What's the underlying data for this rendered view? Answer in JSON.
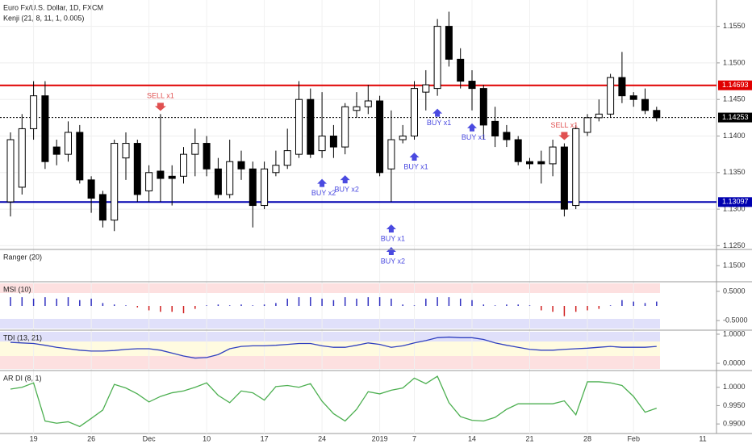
{
  "chart_data": [
    {
      "type": "candlestick",
      "title": "Euro Fx/U.S. Dollar, 1D, FXCM",
      "subtitle": "Kenji (21, 8, 11, 1, 0.005)",
      "categories": [
        null,
        null,
        "19",
        null,
        null,
        null,
        null,
        "26",
        null,
        null,
        null,
        null,
        "Dec",
        null,
        null,
        null,
        null,
        "10",
        null,
        null,
        null,
        null,
        "17",
        null,
        null,
        null,
        null,
        "24",
        null,
        null,
        null,
        null,
        "2019",
        null,
        null,
        "7",
        null,
        null,
        null,
        null,
        "14",
        null,
        null,
        null,
        null,
        "21",
        null,
        null,
        null,
        null,
        "28",
        null,
        null,
        null,
        "Feb",
        null,
        null
      ],
      "extra_x_labels": [
        "11"
      ],
      "open": [
        1.131,
        1.133,
        1.141,
        1.1455,
        1.1385,
        1.1375,
        1.1405,
        1.134,
        1.132,
        1.1285,
        1.137,
        1.139,
        1.1325,
        1.1352,
        1.1345,
        1.1345,
        1.1375,
        1.139,
        1.1355,
        1.132,
        1.1365,
        1.1355,
        1.1305,
        1.135,
        1.136,
        1.1375,
        1.145,
        1.138,
        1.14,
        1.1385,
        1.1435,
        1.144,
        1.1448,
        1.1355,
        1.1395,
        1.14,
        1.146,
        1.1465,
        1.155,
        1.1505,
        1.1475,
        1.1465,
        1.142,
        1.1405,
        1.1395,
        1.1365,
        1.1365,
        1.1362,
        1.1385,
        1.1305,
        1.1405,
        1.1425,
        1.143,
        1.148,
        1.1455,
        1.145,
        1.1435
      ],
      "high": [
        1.1405,
        1.143,
        1.1475,
        1.1475,
        1.1395,
        1.142,
        1.1415,
        1.1345,
        1.1325,
        1.1395,
        1.1405,
        1.1395,
        1.136,
        1.143,
        1.136,
        1.1385,
        1.141,
        1.14,
        1.137,
        1.1395,
        1.138,
        1.1365,
        1.1365,
        1.138,
        1.141,
        1.1475,
        1.1465,
        1.146,
        1.1415,
        1.1445,
        1.146,
        1.147,
        1.1455,
        1.1435,
        1.1415,
        1.1475,
        1.149,
        1.156,
        1.157,
        1.152,
        1.149,
        1.147,
        1.144,
        1.1415,
        1.14,
        1.137,
        1.138,
        1.1395,
        1.139,
        1.1415,
        1.143,
        1.145,
        1.1485,
        1.1515,
        1.146,
        1.1465,
        1.144
      ],
      "low": [
        1.129,
        1.132,
        1.1395,
        1.1355,
        1.136,
        1.1365,
        1.1335,
        1.1295,
        1.1275,
        1.127,
        1.134,
        1.131,
        1.131,
        1.131,
        1.1305,
        1.1335,
        1.1345,
        1.1345,
        1.1315,
        1.1315,
        1.134,
        1.1275,
        1.13,
        1.1345,
        1.1355,
        1.137,
        1.137,
        1.137,
        1.137,
        1.1375,
        1.1425,
        1.143,
        1.1345,
        1.131,
        1.139,
        1.1395,
        1.1435,
        1.1455,
        1.1495,
        1.1465,
        1.1435,
        1.1395,
        1.1385,
        1.1385,
        1.136,
        1.1355,
        1.1335,
        1.1345,
        1.129,
        1.13,
        1.14,
        1.142,
        1.1425,
        1.1445,
        1.144,
        1.143,
        1.142
      ],
      "close": [
        1.1395,
        1.141,
        1.1455,
        1.1365,
        1.1375,
        1.1405,
        1.134,
        1.1315,
        1.1285,
        1.139,
        1.139,
        1.132,
        1.135,
        1.1342,
        1.1342,
        1.1375,
        1.139,
        1.1355,
        1.132,
        1.1365,
        1.1355,
        1.1305,
        1.1355,
        1.136,
        1.138,
        1.145,
        1.1375,
        1.14,
        1.1385,
        1.144,
        1.144,
        1.1448,
        1.135,
        1.1395,
        1.14,
        1.1465,
        1.147,
        1.155,
        1.1505,
        1.1475,
        1.1465,
        1.1415,
        1.14,
        1.1395,
        1.1365,
        1.1362,
        1.1362,
        1.1385,
        1.13,
        1.141,
        1.1425,
        1.143,
        1.148,
        1.1455,
        1.145,
        1.1435,
        1.1425
      ],
      "up_color": "#ffffff",
      "down_color": "#000000",
      "ylim": [
        1.1246,
        1.1586
      ],
      "yticks": [
        {
          "value": 1.155,
          "label": "1.1550"
        },
        {
          "value": 1.15,
          "label": "1.1500"
        },
        {
          "value": 1.145,
          "label": "1.1450"
        },
        {
          "value": 1.14,
          "label": "1.1400"
        },
        {
          "value": 1.135,
          "label": "1.1350"
        },
        {
          "value": 1.13,
          "label": "1.1300"
        },
        {
          "value": 1.125,
          "label": "1.1250"
        }
      ],
      "levels": [
        {
          "value": 1.14693,
          "label": "1.14693",
          "color": "#e00000",
          "style": "solid"
        },
        {
          "value": 1.14253,
          "label": "1.14253",
          "color": "#000000",
          "style": "dotted"
        },
        {
          "value": 1.13097,
          "label": "1.13097",
          "color": "#0000b0",
          "style": "solid"
        }
      ],
      "annotations": [
        {
          "text": "SELL x1"
        },
        {
          "text": "BUY x2"
        },
        {
          "text": "BUY x2"
        },
        {
          "text": "BUY x2"
        },
        {
          "text": "BUY x1"
        },
        {
          "text": "BUY x1"
        },
        {
          "text": "BUY x1"
        },
        {
          "text": "BUY x1"
        },
        {
          "text": "SELL x1"
        }
      ],
      "grid": true
    },
    {
      "type": "bands",
      "title": "Ranger (20)",
      "ylim": [
        1.1455,
        1.1545
      ],
      "yticks": [
        {
          "value": 1.15,
          "label": "1.1500"
        }
      ]
    },
    {
      "type": "histogram-bars",
      "title": "MSI (10)",
      "ylim": [
        -0.8,
        0.8
      ],
      "values": [
        0.3,
        0.3,
        0.25,
        0.3,
        0.25,
        0.3,
        0.2,
        0.25,
        0.1,
        0.05,
        0.02,
        -0.05,
        -0.15,
        -0.2,
        -0.2,
        -0.25,
        -0.1,
        0.02,
        0.05,
        0.02,
        0.05,
        0.02,
        0.05,
        0.1,
        0.25,
        0.3,
        0.3,
        0.25,
        0.2,
        0.3,
        0.25,
        0.3,
        0.3,
        0.25,
        0.05,
        0.02,
        0.25,
        0.3,
        0.3,
        0.25,
        0.2,
        0.05,
        0.02,
        0.05,
        0.05,
        0.02,
        -0.15,
        -0.2,
        -0.35,
        -0.2,
        -0.15,
        -0.1,
        0.02,
        0.2,
        0.15,
        0.1,
        0.15
      ],
      "pos_color": "#3030c0",
      "neg_color": "#d02020",
      "yticks": [
        {
          "value": 0.5,
          "label": "0.5000"
        },
        {
          "value": -0.5,
          "label": "-0.5000"
        }
      ]
    },
    {
      "type": "line",
      "title": "TDI (13, 21)",
      "ylim": [
        -0.22,
        1.11
      ],
      "color": "#3040c0",
      "values": [
        0.72,
        0.7,
        0.68,
        0.62,
        0.55,
        0.5,
        0.45,
        0.42,
        0.42,
        0.44,
        0.48,
        0.5,
        0.5,
        0.45,
        0.35,
        0.25,
        0.18,
        0.2,
        0.3,
        0.5,
        0.58,
        0.6,
        0.6,
        0.62,
        0.65,
        0.68,
        0.68,
        0.6,
        0.55,
        0.55,
        0.62,
        0.7,
        0.65,
        0.55,
        0.6,
        0.7,
        0.78,
        0.88,
        0.9,
        0.88,
        0.88,
        0.82,
        0.7,
        0.62,
        0.55,
        0.48,
        0.45,
        0.45,
        0.48,
        0.5,
        0.52,
        0.55,
        0.58,
        0.55,
        0.55,
        0.55,
        0.58
      ],
      "yticks": [
        {
          "value": 1,
          "label": "1.0000"
        },
        {
          "value": 0,
          "label": "0.0000"
        }
      ]
    },
    {
      "type": "line",
      "title": "AR DI (8, 1)",
      "ylim": [
        0.98761,
        1.00435
      ],
      "color": "#4caf50",
      "values": [
        0.9995,
        1.0,
        1.0012,
        0.9908,
        0.9902,
        0.9906,
        0.9893,
        0.9915,
        0.9938,
        1.0008,
        0.9998,
        0.9982,
        0.996,
        0.9975,
        0.9985,
        0.999,
        1.0,
        1.0012,
        0.9978,
        0.9958,
        0.999,
        0.9985,
        0.9965,
        1.0002,
        1.0005,
        1.0,
        1.001,
        0.9962,
        0.9928,
        0.9908,
        0.994,
        0.9988,
        0.9982,
        0.9992,
        0.9998,
        1.0025,
        1.001,
        1.003,
        0.9958,
        0.992,
        0.991,
        0.9908,
        0.9918,
        0.994,
        0.9955,
        0.9955,
        0.9955,
        0.9955,
        0.9963,
        0.9925,
        1.0015,
        1.0015,
        1.0012,
        1.0005,
        0.9975,
        0.9932,
        0.9943
      ],
      "yticks": [
        {
          "value": 1,
          "label": "1.0000"
        },
        {
          "value": 0.995,
          "label": "0.9950"
        },
        {
          "value": 0.99,
          "label": "0.9900"
        }
      ]
    }
  ]
}
